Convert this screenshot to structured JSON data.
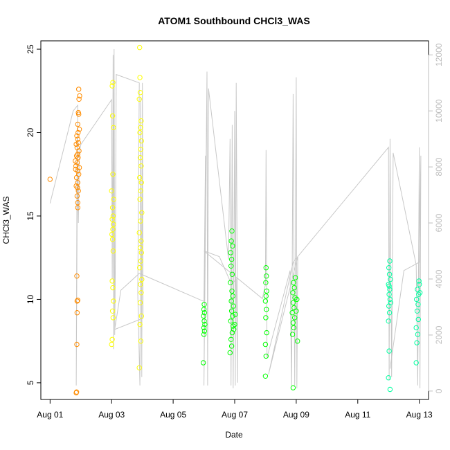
{
  "chart_data": {
    "type": "scatter",
    "title": "ATOM1 Southbound CHCl3_WAS",
    "xlabel": "Date",
    "ylabel": "CHCl3_WAS",
    "x_unit": "day of Aug 2016",
    "xlim": [
      0.7,
      13.3
    ],
    "ylim": [
      4.0,
      25.5
    ],
    "y_ticks": [
      5,
      10,
      15,
      20,
      25
    ],
    "x_ticks": [
      {
        "x": 1,
        "label": "Aug 01"
      },
      {
        "x": 3,
        "label": "Aug 03"
      },
      {
        "x": 5,
        "label": "Aug 05"
      },
      {
        "x": 7,
        "label": "Aug 07"
      },
      {
        "x": 9,
        "label": "Aug 09"
      },
      {
        "x": 11,
        "label": "Aug 11"
      },
      {
        "x": 13,
        "label": "Aug 13"
      }
    ],
    "secondary_axis": {
      "ylim": [
        -300,
        12500
      ],
      "ticks": [
        0,
        2000,
        4000,
        6000,
        8000,
        10000,
        12000
      ],
      "color": "#bdbdbd"
    },
    "altitude_line": {
      "color": "#c8c8c8",
      "points": [
        [
          1.0,
          6700
        ],
        [
          1.75,
          10000
        ],
        [
          1.9,
          10200
        ],
        [
          1.85,
          200
        ],
        [
          1.88,
          9000
        ],
        [
          1.92,
          6000
        ],
        [
          1.95,
          8500
        ],
        [
          2.0,
          8800
        ],
        [
          3.0,
          10400
        ],
        [
          3.02,
          4000
        ],
        [
          3.05,
          12000
        ],
        [
          3.06,
          1500
        ],
        [
          3.08,
          12200
        ],
        [
          3.1,
          2000
        ],
        [
          3.12,
          4500
        ],
        [
          3.15,
          11300
        ],
        [
          3.9,
          11000
        ],
        [
          3.85,
          3500
        ],
        [
          3.92,
          200
        ],
        [
          3.95,
          10500
        ],
        [
          3.98,
          500
        ],
        [
          4.0,
          11000
        ],
        [
          4.02,
          2600
        ],
        [
          3.1,
          2200
        ],
        [
          3.3,
          3600
        ],
        [
          3.9,
          4200
        ],
        [
          6.0,
          3200
        ],
        [
          6.05,
          8400
        ],
        [
          6.0,
          200
        ],
        [
          6.1,
          11400
        ],
        [
          6.12,
          200
        ],
        [
          6.15,
          10800
        ],
        [
          6.8,
          4700
        ],
        [
          6.85,
          9000
        ],
        [
          6.88,
          200
        ],
        [
          6.92,
          9500
        ],
        [
          6.95,
          100
        ],
        [
          7.0,
          10000
        ],
        [
          7.02,
          200
        ],
        [
          7.05,
          11000
        ],
        [
          7.1,
          300
        ],
        [
          7.05,
          4000
        ],
        [
          6.9,
          3800
        ],
        [
          6.5,
          4800
        ],
        [
          6.0,
          5000
        ],
        [
          7.9,
          3300
        ],
        [
          8.0,
          3800
        ],
        [
          8.02,
          8600
        ],
        [
          8.05,
          1200
        ],
        [
          8.8,
          4300
        ],
        [
          8.85,
          200
        ],
        [
          8.9,
          10600
        ],
        [
          8.95,
          200
        ],
        [
          9.0,
          11200
        ],
        [
          9.02,
          100
        ],
        [
          9.05,
          4800
        ],
        [
          8.1,
          600
        ],
        [
          8.9,
          4600
        ],
        [
          12.0,
          8700
        ],
        [
          12.02,
          400
        ],
        [
          12.05,
          9000
        ],
        [
          12.1,
          500
        ],
        [
          12.15,
          8500
        ],
        [
          12.9,
          4500
        ],
        [
          12.95,
          200
        ],
        [
          13.0,
          8700
        ],
        [
          13.02,
          100
        ],
        [
          13.05,
          8400
        ],
        [
          13.0,
          4600
        ],
        [
          12.5,
          4300
        ],
        [
          12.05,
          800
        ]
      ]
    },
    "series": [
      {
        "color": "#ff8c00",
        "points": [
          [
            1.0,
            17.2
          ],
          [
            1.85,
            4.4
          ],
          [
            1.86,
            4.45
          ],
          [
            1.87,
            7.3
          ],
          [
            1.88,
            9.2
          ],
          [
            1.88,
            9.9
          ],
          [
            1.9,
            9.95
          ],
          [
            1.87,
            11.4
          ],
          [
            1.9,
            15.5
          ],
          [
            1.9,
            15.8
          ],
          [
            1.88,
            16.2
          ],
          [
            1.92,
            16.5
          ],
          [
            1.85,
            16.8
          ],
          [
            1.9,
            17.0
          ],
          [
            1.86,
            17.3
          ],
          [
            1.93,
            17.5
          ],
          [
            1.9,
            17.7
          ],
          [
            1.84,
            18.0
          ],
          [
            1.88,
            18.2
          ],
          [
            1.91,
            18.5
          ],
          [
            1.86,
            18.6
          ],
          [
            1.9,
            18.7
          ],
          [
            1.94,
            18.9
          ],
          [
            1.88,
            19.1
          ],
          [
            1.85,
            19.3
          ],
          [
            1.92,
            19.4
          ],
          [
            1.9,
            19.6
          ],
          [
            1.87,
            19.8
          ],
          [
            1.91,
            20.0
          ],
          [
            1.95,
            20.2
          ],
          [
            1.9,
            20.5
          ],
          [
            1.93,
            21.1
          ],
          [
            1.92,
            21.2
          ],
          [
            1.94,
            22.0
          ],
          [
            1.96,
            22.2
          ],
          [
            1.93,
            22.6
          ],
          [
            1.83,
            17.8
          ],
          [
            1.89,
            16.7
          ],
          [
            1.95,
            17.9
          ],
          [
            1.82,
            18.3
          ]
        ]
      },
      {
        "color": "#ffff00",
        "points": [
          [
            3.0,
            7.3
          ],
          [
            3.02,
            7.6
          ],
          [
            3.05,
            8.9
          ],
          [
            3.03,
            9.3
          ],
          [
            3.06,
            9.9
          ],
          [
            3.04,
            10.7
          ],
          [
            3.02,
            11.1
          ],
          [
            3.05,
            12.9
          ],
          [
            3.03,
            13.6
          ],
          [
            3.01,
            13.9
          ],
          [
            3.04,
            14.2
          ],
          [
            3.06,
            14.5
          ],
          [
            3.02,
            14.8
          ],
          [
            3.05,
            15.0
          ],
          [
            3.03,
            15.5
          ],
          [
            3.07,
            16.0
          ],
          [
            3.0,
            16.5
          ],
          [
            3.04,
            17.5
          ],
          [
            3.06,
            20.3
          ],
          [
            3.03,
            21.0
          ],
          [
            3.02,
            22.8
          ],
          [
            3.04,
            23.0
          ],
          [
            3.9,
            5.9
          ],
          [
            3.95,
            7.5
          ],
          [
            3.92,
            8.5
          ],
          [
            3.97,
            9.0
          ],
          [
            3.93,
            9.8
          ],
          [
            3.96,
            10.4
          ],
          [
            3.94,
            10.9
          ],
          [
            3.98,
            11.2
          ],
          [
            3.91,
            11.9
          ],
          [
            3.95,
            12.3
          ],
          [
            3.97,
            12.8
          ],
          [
            3.93,
            13.1
          ],
          [
            3.96,
            13.5
          ],
          [
            3.9,
            14.0
          ],
          [
            3.94,
            14.7
          ],
          [
            3.98,
            15.2
          ],
          [
            3.92,
            16.0
          ],
          [
            3.95,
            16.5
          ],
          [
            3.97,
            17.0
          ],
          [
            3.91,
            17.3
          ],
          [
            3.96,
            18.0
          ],
          [
            3.93,
            18.5
          ],
          [
            3.95,
            19.0
          ],
          [
            3.97,
            19.5
          ],
          [
            3.92,
            20.0
          ],
          [
            3.94,
            20.3
          ],
          [
            3.96,
            20.7
          ],
          [
            3.9,
            22.0
          ],
          [
            3.93,
            22.4
          ],
          [
            3.92,
            23.3
          ],
          [
            3.91,
            25.1
          ]
        ]
      },
      {
        "color": "#00ff00",
        "points": [
          [
            5.98,
            6.2
          ],
          [
            6.0,
            7.9
          ],
          [
            6.02,
            8.1
          ],
          [
            6.0,
            8.3
          ],
          [
            6.03,
            8.5
          ],
          [
            6.01,
            8.7
          ],
          [
            5.99,
            9.0
          ],
          [
            6.02,
            9.2
          ],
          [
            6.0,
            9.4
          ],
          [
            6.01,
            9.7
          ],
          [
            6.85,
            6.8
          ],
          [
            6.9,
            7.2
          ],
          [
            6.88,
            7.6
          ],
          [
            6.92,
            8.0
          ],
          [
            6.95,
            8.4
          ],
          [
            6.87,
            8.7
          ],
          [
            6.93,
            9.0
          ],
          [
            6.9,
            9.3
          ],
          [
            6.96,
            9.6
          ],
          [
            6.89,
            9.9
          ],
          [
            6.94,
            10.2
          ],
          [
            6.91,
            10.5
          ],
          [
            6.86,
            11.0
          ],
          [
            6.92,
            11.5
          ],
          [
            6.88,
            12.0
          ],
          [
            6.9,
            12.4
          ],
          [
            6.87,
            12.8
          ],
          [
            6.93,
            13.2
          ],
          [
            6.89,
            13.5
          ],
          [
            6.91,
            14.1
          ],
          [
            6.97,
            8.2
          ],
          [
            7.0,
            8.5
          ],
          [
            7.02,
            9.1
          ],
          [
            8.0,
            5.4
          ],
          [
            8.02,
            6.6
          ],
          [
            8.0,
            7.3
          ],
          [
            8.04,
            8.0
          ],
          [
            8.01,
            8.9
          ],
          [
            8.03,
            9.4
          ],
          [
            8.0,
            9.9
          ],
          [
            8.02,
            10.2
          ],
          [
            8.04,
            10.5
          ],
          [
            8.01,
            11.0
          ],
          [
            8.03,
            11.4
          ],
          [
            8.02,
            11.9
          ],
          [
            8.9,
            4.7
          ],
          [
            8.88,
            7.9
          ],
          [
            8.92,
            8.3
          ],
          [
            8.9,
            8.6
          ],
          [
            8.95,
            8.9
          ],
          [
            8.87,
            9.2
          ],
          [
            8.93,
            9.5
          ],
          [
            8.9,
            9.8
          ],
          [
            8.96,
            10.1
          ],
          [
            8.89,
            10.4
          ],
          [
            8.94,
            10.7
          ],
          [
            8.91,
            11.0
          ],
          [
            8.97,
            11.3
          ],
          [
            9.0,
            9.3
          ],
          [
            9.02,
            10.0
          ],
          [
            9.04,
            7.5
          ]
        ]
      },
      {
        "color": "#00ffa0",
        "points": [
          [
            12.0,
            5.3
          ],
          [
            12.02,
            6.9
          ],
          [
            12.05,
            4.6
          ],
          [
            12.0,
            8.7
          ],
          [
            12.03,
            9.2
          ],
          [
            12.01,
            9.6
          ],
          [
            12.05,
            10.0
          ],
          [
            12.02,
            10.3
          ],
          [
            12.04,
            10.6
          ],
          [
            12.0,
            10.9
          ],
          [
            12.06,
            11.2
          ],
          [
            12.03,
            11.5
          ],
          [
            12.01,
            11.9
          ],
          [
            12.04,
            12.3
          ],
          [
            12.02,
            10.8
          ],
          [
            12.07,
            9.8
          ],
          [
            12.9,
            6.2
          ],
          [
            12.92,
            7.4
          ],
          [
            12.95,
            7.9
          ],
          [
            12.9,
            8.3
          ],
          [
            12.97,
            8.8
          ],
          [
            12.93,
            9.3
          ],
          [
            12.96,
            9.7
          ],
          [
            12.91,
            10.0
          ],
          [
            12.98,
            10.3
          ],
          [
            12.94,
            10.6
          ],
          [
            13.0,
            10.9
          ],
          [
            12.99,
            11.1
          ],
          [
            13.02,
            10.4
          ]
        ]
      }
    ]
  }
}
